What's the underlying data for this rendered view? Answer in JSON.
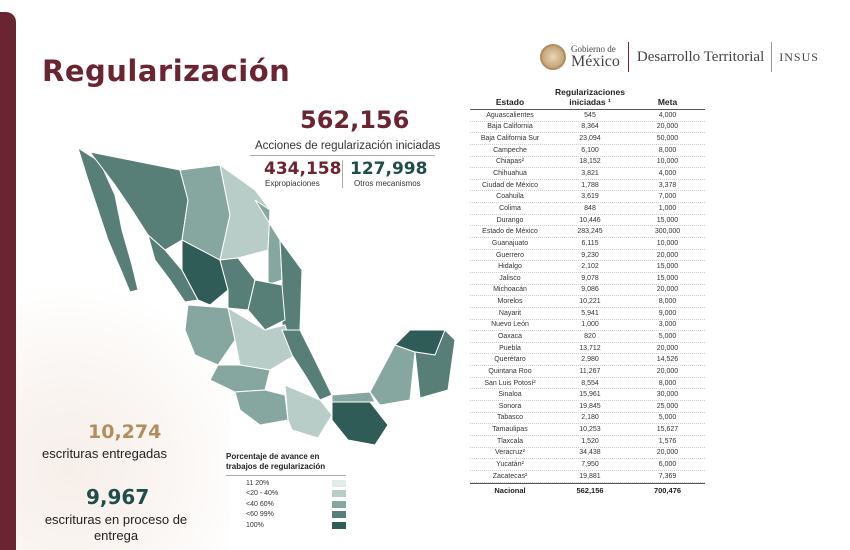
{
  "title": "Regularización",
  "header": {
    "gob_small": "Gobierno de",
    "gob_big": "México",
    "dept": "Desarrollo Territorial",
    "insus": "INSUS"
  },
  "kpis": {
    "total": "562,156",
    "total_label": "Acciones de regularización iniciadas",
    "expropiaciones": "434,158",
    "expropiaciones_label": "Expropiaciones",
    "otros": "127,998",
    "otros_label": "Otros mecanismos"
  },
  "escrituras": {
    "entregadas_value": "10,274",
    "entregadas_label": "escrituras entregadas",
    "proceso_value": "9,967",
    "proceso_label": "escrituras en proceso de entrega"
  },
  "legend": {
    "title": "Porcentaje de avance en trabajos de regularización",
    "items": [
      {
        "label": "11   20%",
        "color": "#e3ebe9"
      },
      {
        "label": "<20 - 40%",
        "color": "#b8ccc8"
      },
      {
        "label": "<40   60%",
        "color": "#86a6a0"
      },
      {
        "label": "<60   99%",
        "color": "#577e77"
      },
      {
        "label": "100%",
        "color": "#2f5c56"
      }
    ]
  },
  "table": {
    "headers": [
      "Estado",
      "Regularizaciones iniciadas ¹",
      "Meta"
    ],
    "rows": [
      [
        "Aguascalientes",
        "545",
        "4,000"
      ],
      [
        "Baja California",
        "8,364",
        "20,000"
      ],
      [
        "Baja California Sur",
        "23,094",
        "50,000"
      ],
      [
        "Campeche",
        "6,100",
        "8,000"
      ],
      [
        "Chiapas²",
        "18,152",
        "10,000"
      ],
      [
        "Chihuahua",
        "3,821",
        "4,000"
      ],
      [
        "Ciudad de México",
        "1,788",
        "3,378"
      ],
      [
        "Coahuila",
        "3,619",
        "7,000"
      ],
      [
        "Colima",
        "848",
        "1,000"
      ],
      [
        "Durango",
        "10,446",
        "15,000"
      ],
      [
        "Estado de México",
        "283,245",
        "300,000"
      ],
      [
        "Guanajuato",
        "6,115",
        "10,000"
      ],
      [
        "Guerrero",
        "9,230",
        "20,000"
      ],
      [
        "Hidalgo",
        "2,102",
        "15,000"
      ],
      [
        "Jalisco",
        "9,078",
        "15,000"
      ],
      [
        "Michoacán",
        "9,086",
        "20,000"
      ],
      [
        "Morelos",
        "10,221",
        "8,000"
      ],
      [
        "Nayarit",
        "5,941",
        "9,000"
      ],
      [
        "Nuevo León",
        "1,000",
        "3,000"
      ],
      [
        "Oaxaca",
        "820",
        "5,000"
      ],
      [
        "Puebla",
        "13,712",
        "20,000"
      ],
      [
        "Querétaro",
        "2,980",
        "14,526"
      ],
      [
        "Quintana Roo",
        "11,267",
        "20,000"
      ],
      [
        "San Luis Potosí²",
        "8,554",
        "8,000"
      ],
      [
        "Sinaloa",
        "15,961",
        "30,000"
      ],
      [
        "Sonora",
        "19,845",
        "25,000"
      ],
      [
        "Tabasco",
        "2,180",
        "5,000"
      ],
      [
        "Tamaulipas",
        "10,253",
        "15,627"
      ],
      [
        "Tlaxcala",
        "1,520",
        "1,576"
      ],
      [
        "Veracruz²",
        "34,438",
        "20,000"
      ],
      [
        "Yucatán²",
        "7,950",
        "6,000"
      ],
      [
        "Zacatecas²",
        "19,881",
        "7,369"
      ]
    ],
    "total": [
      "Nacional",
      "562,156",
      "700,476"
    ]
  }
}
